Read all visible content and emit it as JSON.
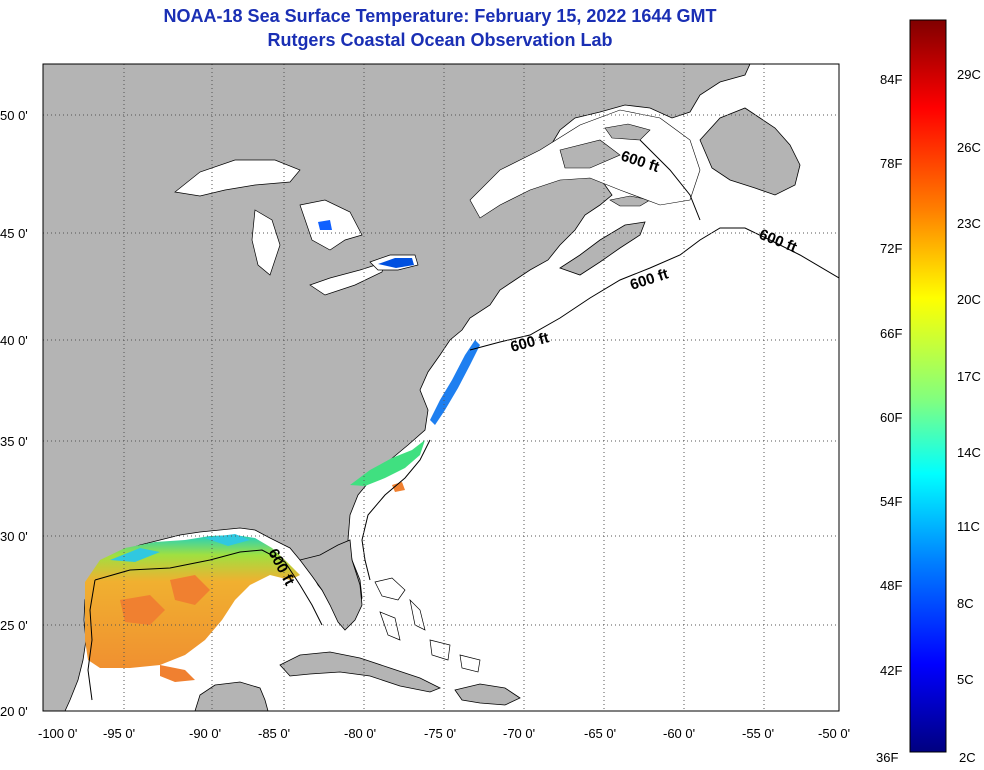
{
  "header": {
    "title_line1": "NOAA-18 Sea Surface Temperature:  February 15, 2022 1644 GMT",
    "title_line2": "Rutgers Coastal Ocean Observation Lab"
  },
  "map": {
    "lon_ticks": [
      "-100 0'",
      "-95 0'",
      "-90 0'",
      "-85 0'",
      "-80 0'",
      "-75 0'",
      "-70 0'",
      "-65 0'",
      "-60 0'",
      "-55 0'",
      "-50 0'"
    ],
    "lat_ticks": [
      "50 0'",
      "45 0'",
      "40 0'",
      "35 0'",
      "30 0'",
      "25 0'",
      "20 0'"
    ],
    "contour_labels": [
      "600 ft",
      "600 ft",
      "600 ft",
      "600 ft",
      "600 ft"
    ],
    "colors": {
      "land": "#b4b4b4",
      "ocean": "#ffffff",
      "grid": "#555555"
    }
  },
  "colorbar": {
    "fahrenheit_labels": [
      "84F",
      "78F",
      "72F",
      "66F",
      "60F",
      "54F",
      "48F",
      "42F",
      "36F"
    ],
    "celsius_labels": [
      "29C",
      "26C",
      "23C",
      "20C",
      "17C",
      "14C",
      "11C",
      "8C",
      "5C",
      "2C"
    ],
    "gradient_colors": [
      "#800000",
      "#ff0000",
      "#ff8000",
      "#ffff00",
      "#80ff80",
      "#00ffff",
      "#0080ff",
      "#0000ff",
      "#000080"
    ]
  }
}
